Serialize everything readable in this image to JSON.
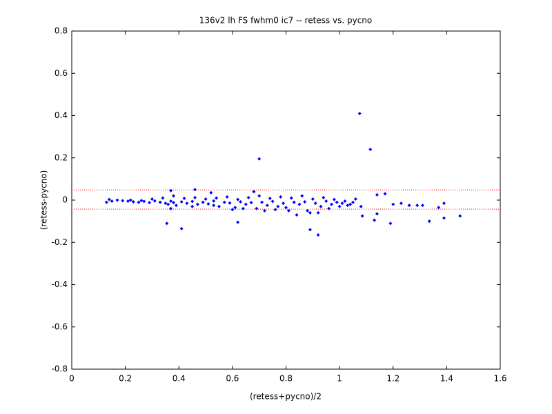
{
  "chart_data": {
    "type": "scatter",
    "title": "136v2 lh FS fwhm0 ic7 -- retess vs. pycno",
    "x_label": "(retess+pycno)/2",
    "y_label": "(retess-pycno)",
    "xlim": [
      0,
      1.6
    ],
    "ylim": [
      -0.8,
      0.8
    ],
    "xticks": [
      0,
      0.2,
      0.4,
      0.6,
      0.8,
      1,
      1.2,
      1.4,
      1.6
    ],
    "yticks": [
      -0.8,
      -0.6,
      -0.4,
      -0.2,
      0,
      0.2,
      0.4,
      0.6,
      0.8
    ],
    "reference_lines": [
      {
        "value": 0.048,
        "color": "#ff0000"
      },
      {
        "value": -0.043,
        "color": "#ff0000"
      }
    ],
    "series": [
      {
        "color": "#0000ff",
        "x": [
          0.13,
          0.14,
          0.15,
          0.17,
          0.19,
          0.21,
          0.23,
          0.25,
          0.27,
          0.29,
          0.31,
          0.33,
          0.35,
          0.36,
          0.37,
          0.38,
          0.39,
          0.41,
          0.43,
          0.45,
          0.47,
          0.49,
          0.51,
          0.53,
          0.55,
          0.57,
          0.59,
          0.61,
          0.63,
          0.65,
          0.67,
          0.69,
          0.71,
          0.73,
          0.75,
          0.77,
          0.79,
          0.81,
          0.83,
          0.85,
          0.87,
          0.89,
          0.91,
          0.93,
          0.95,
          0.97,
          0.99,
          1.01,
          1.03,
          1.05,
          0.22,
          0.26,
          0.3,
          0.34,
          0.38,
          0.42,
          0.46,
          0.5,
          0.54,
          0.58,
          0.62,
          0.66,
          0.7,
          0.74,
          0.78,
          0.82,
          0.86,
          0.9,
          0.94,
          0.98,
          1.02,
          1.06,
          0.37,
          0.45,
          0.53,
          0.6,
          0.64,
          0.72,
          0.76,
          0.8,
          0.84,
          0.88,
          0.92,
          0.96,
          1.0,
          1.04,
          1.08,
          1.075,
          1.115,
          0.7,
          0.92,
          0.89,
          0.41,
          0.355,
          0.62,
          1.335,
          1.39,
          1.45,
          1.19,
          1.13,
          1.085,
          1.14,
          0.37,
          0.46,
          0.52,
          0.68,
          1.17,
          1.14,
          1.39,
          1.37,
          1.26,
          1.29,
          1.31,
          1.23,
          1.2
        ],
        "y": [
          -0.01,
          0.003,
          -0.005,
          0,
          -0.003,
          -0.005,
          -0.008,
          -0.01,
          -0.006,
          -0.012,
          -0.004,
          -0.01,
          -0.015,
          -0.02,
          -0.005,
          -0.012,
          -0.025,
          -0.008,
          -0.015,
          -0.006,
          -0.02,
          -0.01,
          -0.018,
          -0.004,
          -0.03,
          -0.01,
          -0.014,
          -0.035,
          -0.008,
          -0.02,
          -0.012,
          -0.04,
          -0.01,
          -0.025,
          -0.006,
          -0.03,
          -0.015,
          -0.05,
          -0.01,
          -0.02,
          -0.008,
          -0.06,
          -0.015,
          -0.03,
          -0.005,
          -0.02,
          -0.01,
          -0.015,
          -0.025,
          -0.01,
          0,
          -0.002,
          0.005,
          0.01,
          0.02,
          0.008,
          0.012,
          0.005,
          0.01,
          0.015,
          0.003,
          0.012,
          0.02,
          0.008,
          0.015,
          0.01,
          0.02,
          0.005,
          0.012,
          0.003,
          -0.005,
          0.005,
          -0.04,
          -0.03,
          -0.025,
          -0.045,
          -0.04,
          -0.05,
          -0.045,
          -0.035,
          -0.07,
          -0.05,
          -0.06,
          -0.04,
          -0.03,
          -0.02,
          -0.03,
          0.41,
          0.24,
          0.195,
          -0.165,
          -0.14,
          -0.135,
          -0.11,
          -0.105,
          -0.1,
          -0.085,
          -0.075,
          -0.11,
          -0.095,
          -0.075,
          -0.065,
          0.045,
          0.05,
          0.035,
          0.04,
          0.03,
          0.025,
          -0.015,
          -0.035,
          -0.025,
          -0.025,
          -0.025,
          -0.015,
          -0.02
        ]
      }
    ]
  }
}
